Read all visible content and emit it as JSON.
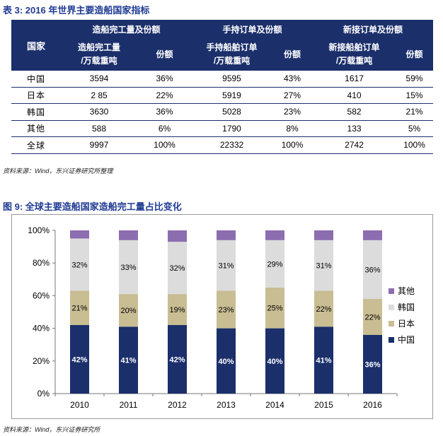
{
  "table": {
    "caption": "表 3: 2016 年世界主要造船国家指标",
    "headers": {
      "country": "国家",
      "group1": "造船完工量及份额",
      "group2": "手持订单及份额",
      "group3": "新接订单及份额",
      "sub1a": "造船完工量",
      "sub1b": "/万载重吨",
      "share1": "份额",
      "sub2a": "手持船舶订单",
      "sub2b": "/万载重吨",
      "share2": "份额",
      "sub3a": "新接船舶订单",
      "sub3b": "/万载重吨",
      "share3": "份额"
    },
    "rows": [
      {
        "country": "中国",
        "completed": "3594",
        "completed_share": "36%",
        "backlog": "9595",
        "backlog_share": "43%",
        "new_orders": "1617",
        "new_orders_share": "59%"
      },
      {
        "country": "日本",
        "completed": "2 85",
        "completed_share": "22%",
        "backlog": "5919",
        "backlog_share": "27%",
        "new_orders": "410",
        "new_orders_share": "15%"
      },
      {
        "country": "韩国",
        "completed": "3630",
        "completed_share": "36%",
        "backlog": "5028",
        "backlog_share": "23%",
        "new_orders": "582",
        "new_orders_share": "21%"
      },
      {
        "country": "其他",
        "completed": "588",
        "completed_share": "6%",
        "backlog": "1790",
        "backlog_share": "8%",
        "new_orders": "133",
        "new_orders_share": "5%"
      },
      {
        "country": "全球",
        "completed": "9997",
        "completed_share": "100%",
        "backlog": "22332",
        "backlog_share": "100%",
        "new_orders": "2742",
        "new_orders_share": "100%"
      }
    ],
    "source": "资料来源：Wind，东兴证券研究所整理"
  },
  "chart": {
    "caption": "图 9: 全球主要造船国家造船完工量占比变化",
    "source": "资料来源：Wind，东兴证券研究所"
  },
  "chart_data": {
    "type": "bar",
    "stacked": true,
    "categories": [
      "2010",
      "2011",
      "2012",
      "2013",
      "2014",
      "2015",
      "2016"
    ],
    "series": [
      {
        "name": "中国",
        "color": "#1b2f6b",
        "values": [
          42,
          41,
          42,
          40,
          40,
          41,
          36
        ],
        "labels": [
          "42%",
          "41%",
          "42%",
          "40%",
          "40%",
          "41%",
          "36%"
        ]
      },
      {
        "name": "日本",
        "color": "#c8bd93",
        "values": [
          21,
          20,
          19,
          23,
          25,
          22,
          22
        ],
        "labels": [
          "21%",
          "20%",
          "19%",
          "23%",
          "25%",
          "22%",
          "22%"
        ]
      },
      {
        "name": "韩国",
        "color": "#dcdcdc",
        "values": [
          32,
          33,
          32,
          31,
          29,
          31,
          36
        ],
        "labels": [
          "32%",
          "33%",
          "32%",
          "31%",
          "29%",
          "31%",
          "36%"
        ]
      },
      {
        "name": "其他",
        "color": "#8c6db0",
        "values": [
          5,
          6,
          7,
          6,
          6,
          6,
          6
        ]
      }
    ],
    "ylim": [
      0,
      100
    ],
    "yticks": [
      "0%",
      "20%",
      "40%",
      "60%",
      "80%",
      "100%"
    ],
    "legend_position": "right",
    "grid": false
  }
}
